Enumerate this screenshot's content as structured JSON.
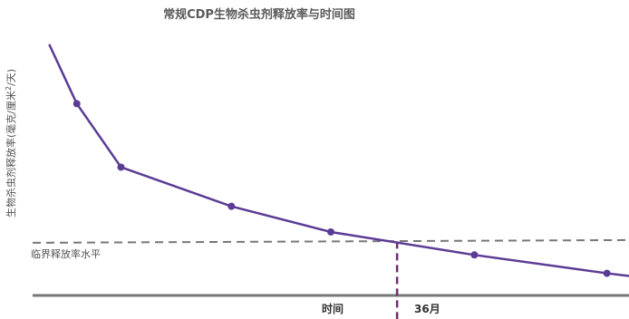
{
  "chart_data": {
    "type": "line",
    "title": "常规CDP生物杀虫剂释放率与时间图",
    "xlabel": "时间",
    "ylabel": "生物杀虫剂释放率(毫克/厘米²/天)",
    "ylabel_main": "生物杀虫剂释放率(毫克/厘米",
    "ylabel_sup": "2",
    "ylabel_tail": "/天)",
    "threshold_label": "临界释放率水平",
    "marker_label": "36月",
    "x_ticks_shown": false,
    "y_ticks_shown": false,
    "grid": false,
    "colors": {
      "line": "#5b3b94",
      "marker_line": "#6b2d6f",
      "threshold": "#777777",
      "axis": "#777777"
    },
    "series": [
      {
        "points": [
          {
            "x": 1.5,
            "y": 9.3
          },
          {
            "x": 4,
            "y": 7.1
          },
          {
            "x": 8,
            "y": 4.75
          },
          {
            "x": 18,
            "y": 3.3
          },
          {
            "x": 27,
            "y": 2.35
          },
          {
            "x": 40,
            "y": 1.5
          },
          {
            "x": 52,
            "y": 0.82
          },
          {
            "x": 54,
            "y": 0.72
          }
        ],
        "markers_from_index": 1,
        "markers_to_index": 6
      }
    ],
    "threshold_y": 2.0,
    "marker_x": 33,
    "xlim": [
      0,
      54
    ],
    "ylim": [
      0,
      10
    ]
  }
}
